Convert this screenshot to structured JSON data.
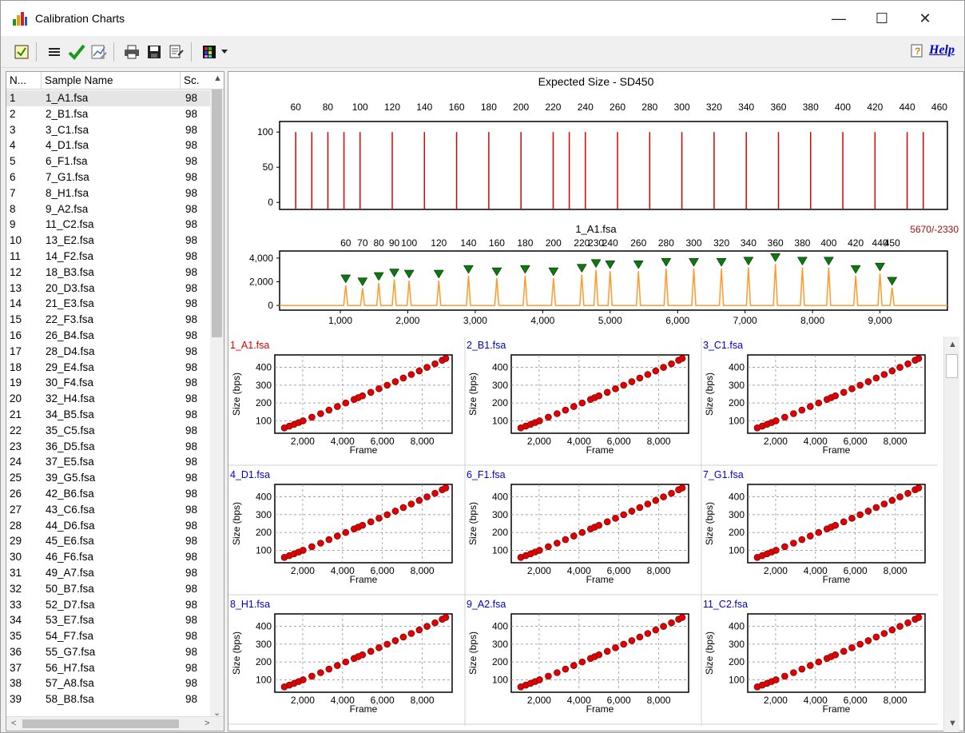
{
  "window": {
    "title": "Calibration Charts",
    "minimize": "—",
    "maximize": "☐",
    "close": "✕"
  },
  "toolbar": {
    "help_label": "Help"
  },
  "sample_list": {
    "columns": [
      "N...",
      "Sample Name",
      "Sc."
    ],
    "rows": [
      [
        "1",
        "1_A1.fsa",
        "98"
      ],
      [
        "2",
        "2_B1.fsa",
        "98"
      ],
      [
        "3",
        "3_C1.fsa",
        "98"
      ],
      [
        "4",
        "4_D1.fsa",
        "98"
      ],
      [
        "5",
        "6_F1.fsa",
        "98"
      ],
      [
        "6",
        "7_G1.fsa",
        "98"
      ],
      [
        "7",
        "8_H1.fsa",
        "98"
      ],
      [
        "8",
        "9_A2.fsa",
        "98"
      ],
      [
        "9",
        "11_C2.fsa",
        "98"
      ],
      [
        "10",
        "13_E2.fsa",
        "98"
      ],
      [
        "11",
        "14_F2.fsa",
        "98"
      ],
      [
        "12",
        "18_B3.fsa",
        "98"
      ],
      [
        "13",
        "20_D3.fsa",
        "98"
      ],
      [
        "14",
        "21_E3.fsa",
        "98"
      ],
      [
        "15",
        "22_F3.fsa",
        "98"
      ],
      [
        "16",
        "26_B4.fsa",
        "98"
      ],
      [
        "17",
        "28_D4.fsa",
        "98"
      ],
      [
        "18",
        "29_E4.fsa",
        "98"
      ],
      [
        "19",
        "30_F4.fsa",
        "98"
      ],
      [
        "20",
        "32_H4.fsa",
        "98"
      ],
      [
        "21",
        "34_B5.fsa",
        "98"
      ],
      [
        "22",
        "35_C5.fsa",
        "98"
      ],
      [
        "23",
        "36_D5.fsa",
        "98"
      ],
      [
        "24",
        "37_E5.fsa",
        "98"
      ],
      [
        "25",
        "39_G5.fsa",
        "98"
      ],
      [
        "26",
        "42_B6.fsa",
        "98"
      ],
      [
        "27",
        "43_C6.fsa",
        "98"
      ],
      [
        "28",
        "44_D6.fsa",
        "98"
      ],
      [
        "29",
        "45_E6.fsa",
        "98"
      ],
      [
        "30",
        "46_F6.fsa",
        "98"
      ],
      [
        "31",
        "49_A7.fsa",
        "98"
      ],
      [
        "32",
        "50_B7.fsa",
        "98"
      ],
      [
        "33",
        "52_D7.fsa",
        "98"
      ],
      [
        "34",
        "53_E7.fsa",
        "98"
      ],
      [
        "35",
        "54_F7.fsa",
        "98"
      ],
      [
        "36",
        "55_G7.fsa",
        "98"
      ],
      [
        "37",
        "56_H7.fsa",
        "98"
      ],
      [
        "38",
        "57_A8.fsa",
        "98"
      ],
      [
        "39",
        "58_B8.fsa",
        "98"
      ]
    ]
  },
  "colors": {
    "accent_red": "#dd0000",
    "trace_orange": "#ff9a2a",
    "marker_green": "#0a7a0a",
    "point_red": "#e00000",
    "link_blue": "#0000cc"
  },
  "chart_data": [
    {
      "type": "bar",
      "title": "Expected Size - SD450",
      "x": [
        60,
        70,
        80,
        90,
        100,
        120,
        140,
        160,
        180,
        200,
        220,
        230,
        240,
        260,
        280,
        300,
        320,
        340,
        360,
        380,
        400,
        420,
        440,
        450
      ],
      "xticks": [
        60,
        80,
        100,
        120,
        140,
        160,
        180,
        200,
        220,
        240,
        260,
        280,
        300,
        320,
        340,
        360,
        380,
        400,
        420,
        440,
        460
      ],
      "values": [
        100,
        100,
        100,
        100,
        100,
        100,
        100,
        100,
        100,
        100,
        100,
        100,
        100,
        100,
        100,
        100,
        100,
        100,
        100,
        100,
        100,
        100,
        100,
        100
      ],
      "yticks": [
        0,
        50,
        100
      ],
      "xlim": [
        50,
        465
      ],
      "ylim": [
        -10,
        115
      ]
    },
    {
      "type": "line",
      "title": "1_A1.fsa",
      "corner_label": "5670/-2330",
      "peaks_frame": [
        1080,
        1330,
        1570,
        1800,
        2020,
        2460,
        2900,
        3320,
        3740,
        4160,
        4580,
        4790,
        5000,
        5420,
        5830,
        6240,
        6650,
        7050,
        7450,
        7850,
        8240,
        8640,
        9000,
        9180
      ],
      "peaks_height": [
        1700,
        1450,
        1900,
        2200,
        2100,
        2100,
        2500,
        2300,
        2500,
        2300,
        2600,
        3000,
        2900,
        2900,
        3100,
        3100,
        3100,
        3200,
        3500,
        3200,
        3200,
        2500,
        2700,
        1500
      ],
      "size_labels": [
        "60",
        "70",
        "80",
        "90",
        "100",
        "120",
        "140",
        "160",
        "180",
        "200",
        "220",
        "230",
        "240",
        "260",
        "280",
        "300",
        "320",
        "340",
        "360",
        "380",
        "400",
        "420",
        "440",
        "450"
      ],
      "xticks": [
        1000,
        2000,
        3000,
        4000,
        5000,
        6000,
        7000,
        8000,
        9000
      ],
      "xtick_labels": [
        "1,000",
        "2,000",
        "3,000",
        "4,000",
        "5,000",
        "6,000",
        "7,000",
        "8,000",
        "9,000"
      ],
      "yticks": [
        0,
        2000,
        4000
      ],
      "ytick_labels": [
        "0",
        "2,000",
        "4,000"
      ],
      "xlim": [
        100,
        10000
      ],
      "ylim": [
        -400,
        4600
      ]
    },
    {
      "type": "scatter",
      "samples": [
        "1_A1.fsa",
        "2_B1.fsa",
        "3_C1.fsa",
        "4_D1.fsa",
        "6_F1.fsa",
        "7_G1.fsa",
        "8_H1.fsa",
        "9_A2.fsa",
        "11_C2.fsa"
      ],
      "x": [
        1080,
        1330,
        1570,
        1800,
        2020,
        2460,
        2900,
        3320,
        3740,
        4160,
        4580,
        4790,
        5000,
        5420,
        5830,
        6240,
        6650,
        7050,
        7450,
        7850,
        8240,
        8640,
        9000,
        9180
      ],
      "y": [
        60,
        70,
        80,
        90,
        100,
        120,
        140,
        160,
        180,
        200,
        220,
        230,
        240,
        260,
        280,
        300,
        320,
        340,
        360,
        380,
        400,
        420,
        440,
        450
      ],
      "xlabel": "Frame",
      "ylabel": "Size (bps)",
      "xticks": [
        2000,
        4000,
        6000,
        8000
      ],
      "xtick_labels": [
        "2,000",
        "4,000",
        "6,000",
        "8,000"
      ],
      "yticks": [
        100,
        200,
        300,
        400
      ],
      "xlim": [
        600,
        9500
      ],
      "ylim": [
        30,
        470
      ],
      "grid": true
    }
  ],
  "cell_title_colors": [
    "#dd0000",
    "#0000cc",
    "#0000cc",
    "#0000cc",
    "#0000cc",
    "#0000cc",
    "#0000cc",
    "#0000cc",
    "#0000cc"
  ]
}
